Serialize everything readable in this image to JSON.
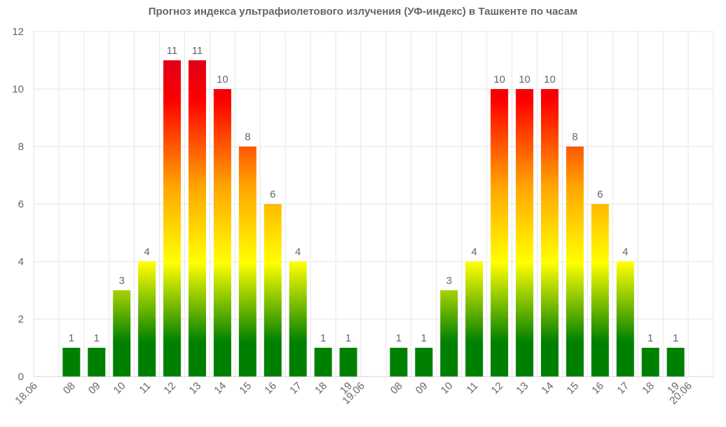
{
  "chart_data": {
    "type": "bar",
    "title": "Прогноз индекса ультрафиолетового излучения (УФ-индекс) в Ташкенте по часам",
    "xlabel": "",
    "ylabel": "",
    "ylim": [
      0,
      12
    ],
    "yticks": [
      0,
      2,
      4,
      6,
      8,
      10,
      12
    ],
    "grid": true,
    "categories": [
      "18.06",
      "08",
      "09",
      "10",
      "11",
      "12",
      "13",
      "14",
      "15",
      "16",
      "17",
      "18",
      "19",
      "19.06",
      "08",
      "09",
      "10",
      "11",
      "12",
      "13",
      "14",
      "15",
      "16",
      "17",
      "18",
      "19",
      "20.06"
    ],
    "values": [
      null,
      1,
      1,
      3,
      4,
      11,
      11,
      10,
      8,
      6,
      4,
      1,
      1,
      null,
      1,
      1,
      3,
      4,
      10,
      10,
      10,
      8,
      6,
      4,
      1,
      1,
      null
    ],
    "gradient_colors": {
      "top": "#c8002a",
      "upper": "#ff0000",
      "middle": "#ffa500",
      "lower": "#ffff00",
      "bottom": "#008000"
    }
  }
}
